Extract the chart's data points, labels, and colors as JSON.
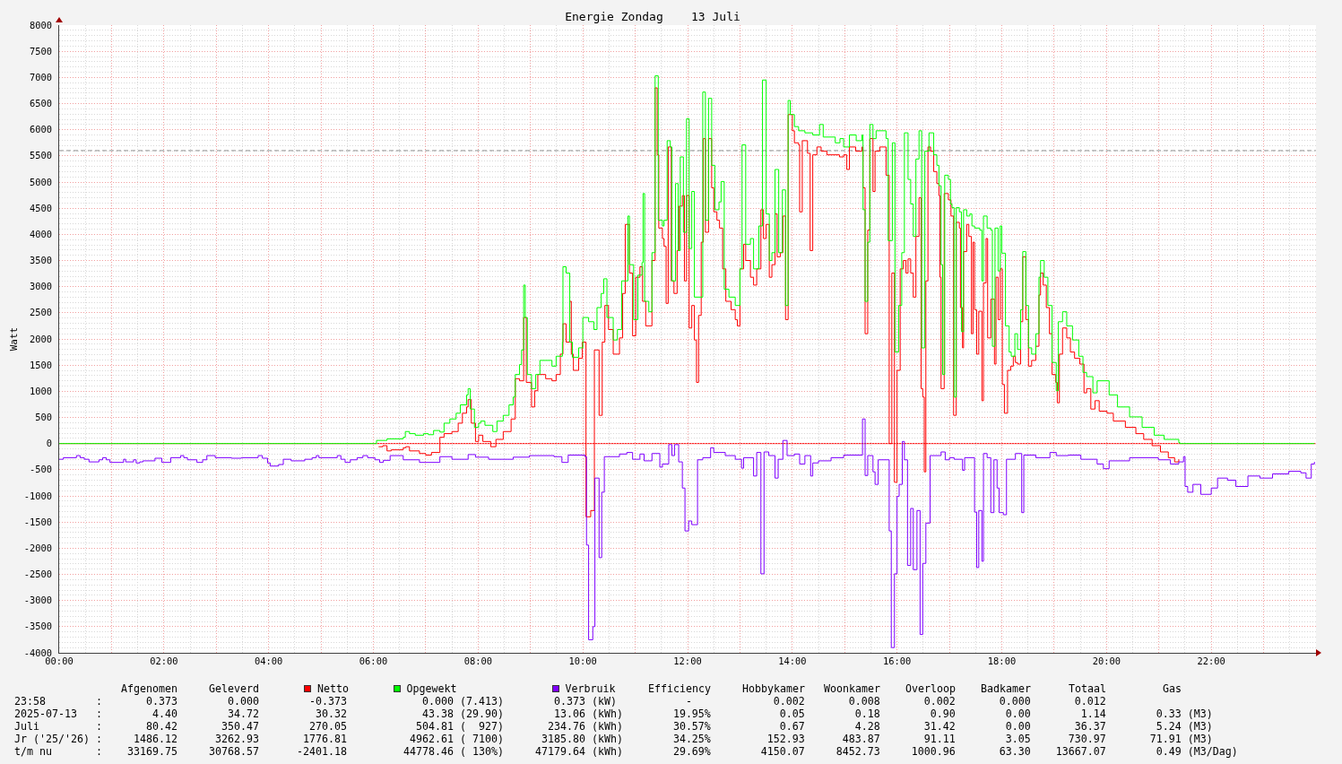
{
  "chart_data": {
    "type": "step",
    "title": "Energie Zondag    13 Juli",
    "ylabel": "Watt",
    "xlim": [
      0,
      24
    ],
    "xticks": [
      {
        "value": 0,
        "label": "00:00"
      },
      {
        "value": 1,
        "label": null
      },
      {
        "value": 2,
        "label": "02:00"
      },
      {
        "value": 3,
        "label": null
      },
      {
        "value": 4,
        "label": "04:00"
      },
      {
        "value": 5,
        "label": null
      },
      {
        "value": 6,
        "label": "06:00"
      },
      {
        "value": 7,
        "label": null
      },
      {
        "value": 8,
        "label": "08:00"
      },
      {
        "value": 9,
        "label": null
      },
      {
        "value": 10,
        "label": "10:00"
      },
      {
        "value": 11,
        "label": null
      },
      {
        "value": 12,
        "label": "12:00"
      },
      {
        "value": 13,
        "label": null
      },
      {
        "value": 14,
        "label": "14:00"
      },
      {
        "value": 15,
        "label": null
      },
      {
        "value": 16,
        "label": "16:00"
      },
      {
        "value": 17,
        "label": null
      },
      {
        "value": 18,
        "label": "18:00"
      },
      {
        "value": 19,
        "label": null
      },
      {
        "value": 20,
        "label": "20:00"
      },
      {
        "value": 21,
        "label": null
      },
      {
        "value": 22,
        "label": "22:00"
      },
      {
        "value": 23,
        "label": null
      }
    ],
    "ylim": [
      -4000,
      8000
    ],
    "yticks": [
      -4000,
      -3500,
      -3000,
      -2500,
      -2000,
      -1500,
      -1000,
      -500,
      0,
      500,
      1000,
      1500,
      2000,
      2500,
      3000,
      3500,
      4000,
      4500,
      5000,
      5500,
      6000,
      6500,
      7000,
      7500,
      8000
    ],
    "grid": true,
    "legend": "bottom",
    "series": [
      {
        "name": "Netto",
        "color": "#ff0000",
        "x": [
          6.1,
          6.18,
          6.26,
          6.34,
          6.57,
          6.62,
          6.69,
          6.88,
          7.0,
          7.11,
          7.27,
          7.35,
          7.5,
          7.62,
          7.7,
          7.78,
          7.81,
          7.87,
          7.95,
          8.01,
          8.09,
          8.24,
          8.34,
          8.48,
          8.63,
          8.71,
          8.79,
          8.87,
          8.92,
          9.02,
          9.08,
          9.14,
          9.29,
          9.41,
          9.49,
          9.57,
          9.62,
          9.68,
          9.75,
          9.78,
          9.82,
          9.92,
          9.99,
          10.06,
          10.15,
          10.22,
          10.31,
          10.37,
          10.42,
          10.49,
          10.58,
          10.7,
          10.76,
          10.81,
          10.89,
          10.95,
          11.01,
          11.09,
          11.14,
          11.2,
          11.32,
          11.38,
          11.42,
          11.45,
          11.52,
          11.55,
          11.59,
          11.63,
          11.69,
          11.74,
          11.8,
          11.84,
          11.9,
          11.94,
          11.98,
          12.03,
          12.08,
          12.13,
          12.17,
          12.21,
          12.26,
          12.3,
          12.34,
          12.4,
          12.46,
          12.5,
          12.56,
          12.61,
          12.67,
          12.73,
          12.83,
          12.91,
          12.95,
          13.0,
          13.07,
          13.11,
          13.2,
          13.26,
          13.32,
          13.4,
          13.45,
          13.5,
          13.56,
          13.61,
          13.67,
          13.71,
          13.77,
          13.82,
          13.87,
          13.92,
          14.0,
          14.04,
          14.12,
          14.14,
          14.19,
          14.29,
          14.34,
          14.39,
          14.47,
          14.55,
          14.66,
          14.9,
          14.98,
          15.04,
          15.09,
          15.21,
          15.33,
          15.35,
          15.39,
          15.44,
          15.48,
          15.54,
          15.58,
          15.67,
          15.79,
          15.85,
          15.9,
          15.95,
          16.0,
          16.06,
          16.12,
          16.17,
          16.21,
          16.26,
          16.31,
          16.36,
          16.42,
          16.46,
          16.49,
          16.52,
          16.55,
          16.59,
          16.64,
          16.7,
          16.76,
          16.8,
          16.82,
          16.84,
          16.9,
          16.98,
          17.03,
          17.08,
          17.13,
          17.19,
          17.21,
          17.25,
          17.27,
          17.33,
          17.37,
          17.42,
          17.45,
          17.48,
          17.52,
          17.56,
          17.62,
          17.65,
          17.7,
          17.73,
          17.79,
          17.86,
          17.89,
          17.93,
          17.97,
          18.01,
          18.05,
          18.11,
          18.17,
          18.22,
          18.26,
          18.3,
          18.36,
          18.4,
          18.46,
          18.51,
          18.57,
          18.65,
          18.71,
          18.74,
          18.79,
          18.85,
          18.91,
          18.96,
          19.03,
          19.06,
          19.1,
          19.16,
          19.24,
          19.31,
          19.39,
          19.49,
          19.57,
          19.62,
          19.7,
          19.78,
          19.86,
          20.01,
          20.13,
          20.36,
          20.56,
          20.71,
          20.87,
          21.03,
          21.18,
          21.3,
          21.38
        ],
        "values": [
          -60,
          -40,
          -140,
          -120,
          -80,
          -60,
          -140,
          -190,
          -220,
          -170,
          120,
          190,
          230,
          390,
          580,
          700,
          840,
          390,
          40,
          160,
          40,
          -60,
          80,
          230,
          470,
          1240,
          1200,
          2410,
          1170,
          700,
          1010,
          1320,
          1240,
          1200,
          1320,
          1710,
          2290,
          1940,
          2720,
          1710,
          1400,
          1630,
          1940,
          -1400,
          -1280,
          1790,
          540,
          1940,
          2640,
          2180,
          1710,
          2020,
          2870,
          4190,
          3260,
          2060,
          3180,
          3380,
          2720,
          2250,
          3500,
          6800,
          5520,
          4120,
          3920,
          3770,
          2680,
          5670,
          3110,
          2870,
          3690,
          4540,
          4740,
          3110,
          4740,
          2210,
          2640,
          1980,
          1170,
          2450,
          3850,
          5830,
          4040,
          5830,
          4890,
          4430,
          4270,
          4120,
          3340,
          2720,
          2560,
          2370,
          2250,
          3340,
          3810,
          3500,
          3180,
          3030,
          3340,
          4470,
          3920,
          4190,
          3180,
          3420,
          4390,
          3570,
          3650,
          4350,
          2370,
          6290,
          5980,
          5750,
          5710,
          4430,
          5790,
          5550,
          3690,
          5520,
          5670,
          5590,
          5520,
          5480,
          5520,
          5240,
          5670,
          5590,
          5670,
          4890,
          2100,
          4080,
          5830,
          4820,
          5590,
          5670,
          5130,
          0,
          3260,
          -740,
          1400,
          3340,
          3500,
          3260,
          3530,
          3260,
          2800,
          3960,
          4700,
          1050,
          890,
          -540,
          3110,
          5670,
          5590,
          5200,
          4970,
          4740,
          3180,
          1050,
          4780,
          4660,
          4350,
          540,
          4230,
          4120,
          2600,
          1830,
          3670,
          4190,
          3960,
          2100,
          3850,
          2560,
          1710,
          2530,
          820,
          3070,
          3920,
          2020,
          2760,
          1520,
          3180,
          2370,
          3340,
          1130,
          580,
          1400,
          1480,
          1670,
          1550,
          1520,
          2330,
          3570,
          2370,
          1480,
          1590,
          1860,
          2840,
          3260,
          3030,
          2600,
          2100,
          1320,
          1170,
          780,
          1710,
          2210,
          2020,
          1750,
          1630,
          1520,
          970,
          1050,
          660,
          820,
          620,
          580,
          430,
          310,
          190,
          80,
          -40,
          -160,
          -270,
          -350,
          -300
        ]
      },
      {
        "name": "Opgewekt",
        "color": "#00ff00",
        "x": [
          0,
          6.06,
          6.26,
          6.57,
          6.61,
          6.69,
          6.8,
          6.96,
          7.05,
          7.15,
          7.27,
          7.35,
          7.46,
          7.58,
          7.66,
          7.78,
          7.81,
          7.85,
          7.93,
          8.01,
          8.05,
          8.13,
          8.28,
          8.36,
          8.48,
          8.59,
          8.67,
          8.71,
          8.79,
          8.83,
          8.87,
          8.9,
          8.94,
          9.02,
          9.1,
          9.18,
          9.41,
          9.49,
          9.61,
          9.62,
          9.68,
          9.75,
          9.8,
          9.92,
          10.0,
          10.11,
          10.21,
          10.27,
          10.35,
          10.4,
          10.46,
          10.58,
          10.66,
          10.74,
          10.86,
          10.89,
          10.97,
          11.05,
          11.13,
          11.15,
          11.18,
          11.26,
          11.32,
          11.38,
          11.44,
          11.52,
          11.55,
          11.61,
          11.67,
          11.7,
          11.77,
          11.82,
          11.86,
          11.92,
          11.98,
          12.03,
          12.08,
          12.13,
          12.29,
          12.34,
          12.4,
          12.46,
          12.52,
          12.6,
          12.64,
          12.7,
          12.79,
          12.91,
          13.0,
          13.04,
          13.11,
          13.2,
          13.26,
          13.36,
          13.43,
          13.5,
          13.56,
          13.61,
          13.67,
          13.74,
          13.81,
          13.87,
          13.92,
          13.96,
          14.04,
          14.12,
          14.24,
          14.39,
          14.52,
          14.59,
          14.82,
          14.91,
          14.98,
          15.09,
          15.22,
          15.33,
          15.35,
          15.39,
          15.44,
          15.48,
          15.54,
          15.6,
          15.79,
          15.83,
          15.91,
          15.96,
          16.03,
          16.09,
          16.14,
          16.21,
          16.26,
          16.31,
          16.36,
          16.42,
          16.47,
          16.53,
          16.61,
          16.7,
          16.76,
          16.8,
          16.84,
          16.87,
          16.91,
          16.98,
          17.02,
          17.05,
          17.09,
          17.13,
          17.19,
          17.23,
          17.27,
          17.33,
          17.39,
          17.43,
          17.48,
          17.58,
          17.62,
          17.65,
          17.72,
          17.79,
          17.82,
          17.87,
          17.93,
          17.97,
          18.0,
          18.07,
          18.14,
          18.18,
          18.25,
          18.3,
          18.36,
          18.4,
          18.46,
          18.51,
          18.57,
          18.65,
          18.71,
          18.74,
          18.81,
          18.88,
          18.96,
          19.04,
          19.08,
          19.16,
          19.24,
          19.35,
          19.47,
          19.55,
          19.62,
          19.74,
          19.82,
          20.05,
          20.21,
          20.44,
          20.68,
          20.91,
          21.1,
          21.38,
          21.4,
          23.97
        ],
        "values": [
          0,
          60,
          90,
          120,
          230,
          190,
          160,
          190,
          170,
          250,
          220,
          390,
          470,
          580,
          740,
          930,
          1050,
          660,
          310,
          390,
          430,
          350,
          230,
          430,
          540,
          740,
          890,
          1320,
          1510,
          1790,
          3030,
          2410,
          1320,
          1050,
          1320,
          1590,
          1480,
          1670,
          1940,
          3380,
          3260,
          1940,
          1650,
          1830,
          2410,
          2330,
          2180,
          2600,
          2870,
          3150,
          2410,
          1980,
          2180,
          3110,
          4350,
          3420,
          2370,
          3220,
          3460,
          4780,
          2720,
          2520,
          3650,
          7030,
          4270,
          4160,
          4270,
          5790,
          5670,
          3110,
          4970,
          3690,
          5480,
          4040,
          6210,
          3730,
          4820,
          2800,
          6720,
          4270,
          6600,
          5320,
          4470,
          4620,
          5010,
          2950,
          2800,
          2640,
          3340,
          5710,
          3810,
          3920,
          3340,
          4160,
          6950,
          4390,
          3500,
          3650,
          5240,
          3650,
          4850,
          2640,
          6560,
          6290,
          6060,
          5980,
          5940,
          5900,
          6100,
          5860,
          5750,
          5830,
          5670,
          5900,
          5790,
          5900,
          4470,
          2720,
          3850,
          6100,
          5830,
          5980,
          5830,
          3880,
          5750,
          1750,
          2640,
          3650,
          5940,
          5050,
          4580,
          3960,
          5440,
          5980,
          1830,
          5590,
          5940,
          5520,
          5320,
          4930,
          3420,
          1320,
          5130,
          5050,
          4580,
          4510,
          890,
          4510,
          4430,
          2140,
          4470,
          4350,
          4390,
          4160,
          4120,
          4080,
          3110,
          4350,
          4120,
          4080,
          1860,
          4120,
          3300,
          4160,
          3640,
          2250,
          1750,
          1670,
          2100,
          1800,
          2560,
          3670,
          2640,
          1830,
          1710,
          2100,
          3180,
          3500,
          3180,
          2640,
          1550,
          1010,
          2330,
          2520,
          2250,
          1980,
          1670,
          1360,
          1280,
          970,
          1200,
          930,
          700,
          510,
          310,
          160,
          80,
          20,
          0,
          0
        ]
      },
      {
        "name": "Verbruik",
        "color": "#7f00ff",
        "x": [
          0,
          0.08,
          0.33,
          0.4,
          0.48,
          0.57,
          0.76,
          0.83,
          0.9,
          0.97,
          1.23,
          1.27,
          1.42,
          1.47,
          1.54,
          1.6,
          1.83,
          1.96,
          2.13,
          2.32,
          2.38,
          2.45,
          2.63,
          2.74,
          2.82,
          2.98,
          3.29,
          3.48,
          3.8,
          3.88,
          3.98,
          4.03,
          4.19,
          4.28,
          4.43,
          4.69,
          4.83,
          4.91,
          4.96,
          5.31,
          5.38,
          5.46,
          5.56,
          5.69,
          5.8,
          5.89,
          6.03,
          6.12,
          6.19,
          6.32,
          6.57,
          6.88,
          7.27,
          7.5,
          7.81,
          7.95,
          8.2,
          8.67,
          8.98,
          9.45,
          9.6,
          9.72,
          10.04,
          10.07,
          10.11,
          10.19,
          10.23,
          10.31,
          10.36,
          10.41,
          10.7,
          10.84,
          10.95,
          11.09,
          11.17,
          11.32,
          11.47,
          11.52,
          11.64,
          11.7,
          11.75,
          11.83,
          11.9,
          11.95,
          12.02,
          12.08,
          12.19,
          12.29,
          12.44,
          12.5,
          12.72,
          12.91,
          13.03,
          13.07,
          13.26,
          13.32,
          13.4,
          13.46,
          13.55,
          13.67,
          13.73,
          13.82,
          13.9,
          14.04,
          14.14,
          14.24,
          14.35,
          14.39,
          14.5,
          14.74,
          14.98,
          15.34,
          15.39,
          15.44,
          15.54,
          15.58,
          15.64,
          15.85,
          15.89,
          15.95,
          16.0,
          16.04,
          16.1,
          16.14,
          16.2,
          16.26,
          16.31,
          16.38,
          16.44,
          16.49,
          16.55,
          16.63,
          16.84,
          16.92,
          17.0,
          17.09,
          17.25,
          17.29,
          17.48,
          17.52,
          17.56,
          17.62,
          17.65,
          17.72,
          17.79,
          17.85,
          17.91,
          17.95,
          18.03,
          18.09,
          18.26,
          18.38,
          18.42,
          18.65,
          18.92,
          19.04,
          19.27,
          19.51,
          19.82,
          19.94,
          20.05,
          20.44,
          20.99,
          21.22,
          21.38,
          21.47,
          21.5,
          21.55,
          21.65,
          21.8,
          22.0,
          22.12,
          22.31,
          22.47,
          22.7,
          22.93,
          23.17,
          23.48,
          23.71,
          23.81,
          23.91,
          23.97
        ],
        "values": [
          -300,
          -270,
          -230,
          -270,
          -300,
          -350,
          -310,
          -270,
          -310,
          -360,
          -300,
          -350,
          -310,
          -370,
          -350,
          -330,
          -280,
          -360,
          -270,
          -230,
          -270,
          -310,
          -360,
          -310,
          -230,
          -270,
          -280,
          -270,
          -230,
          -280,
          -370,
          -430,
          -400,
          -300,
          -330,
          -300,
          -270,
          -230,
          -270,
          -230,
          -300,
          -360,
          -310,
          -270,
          -230,
          -270,
          -310,
          -360,
          -320,
          -230,
          -310,
          -360,
          -250,
          -300,
          -210,
          -260,
          -300,
          -260,
          -230,
          -250,
          -360,
          -220,
          -250,
          -1940,
          -3750,
          -3500,
          -660,
          -2180,
          -930,
          -250,
          -200,
          -170,
          -300,
          -200,
          -330,
          -190,
          -450,
          -390,
          -20,
          -230,
          -20,
          -350,
          -850,
          -1670,
          -1480,
          -1550,
          -310,
          -270,
          -80,
          -170,
          -230,
          -300,
          -470,
          -270,
          -620,
          -170,
          -2490,
          -160,
          -230,
          -660,
          -300,
          60,
          -230,
          -200,
          -390,
          -230,
          -620,
          -370,
          -330,
          -270,
          -220,
          470,
          -610,
          -230,
          -540,
          -780,
          -310,
          -1670,
          -3900,
          -2490,
          -1010,
          -780,
          40,
          -310,
          -2330,
          -1240,
          -2410,
          -1280,
          -3650,
          -2290,
          -1520,
          -230,
          -160,
          -310,
          -270,
          -300,
          -510,
          -270,
          -1310,
          -2370,
          -1280,
          -2250,
          -190,
          -270,
          -1320,
          -310,
          -850,
          -1320,
          -1360,
          -300,
          -190,
          -1320,
          -220,
          -270,
          -170,
          -230,
          -220,
          -300,
          -390,
          -480,
          -330,
          -270,
          -310,
          -390,
          -350,
          -250,
          -820,
          -930,
          -780,
          -970,
          -850,
          -660,
          -700,
          -820,
          -620,
          -660,
          -580,
          -530,
          -560,
          -660,
          -390,
          -350
        ]
      }
    ],
    "ref_lines": [
      {
        "axis": "y",
        "value": 0,
        "color": "#ff0000"
      },
      {
        "axis": "y",
        "value": 5600,
        "color": "#808080",
        "line_style": "dashed"
      }
    ],
    "annotations": [
      "Afgenomen     Geleverd",
      "Efficiency     Hobbykamer   Woonkamer    Overloop    Badkamer      Totaal         Gas",
      "23:58        :       0.373        0.000        -0.373            0.000 (7.413)        0.373 (kW)           -             0.002       0.008       0.002       0.000       0.012",
      "2025-07-13   :        4.40        34.72         30.32            43.38 (29.90)        13.06 (kWh)        19.95%           0.05        0.18        0.90        0.00        1.14        0.33 (M3)",
      "Juli         :       80.42       350.47        270.05           504.81 (  927)       234.76 (kWh)        30.57%           0.67        4.28       31.42        0.00       36.37        5.24 (M3)",
      "Jr ('25/'26) :     1486.12      3262.93       1776.81          4962.61 ( 7100)      3185.80 (kWh)        34.25%         152.93      483.87       91.11        3.05      730.97       71.91 (M3)",
      "t/m nu       :    33169.75     30768.57      -2401.18         44778.46 ( 130%)     47179.64 (kWh)        29.69%        4150.07     8452.73     1000.96       63.30    13667.07        0.49 (M3/Dag)"
    ]
  }
}
